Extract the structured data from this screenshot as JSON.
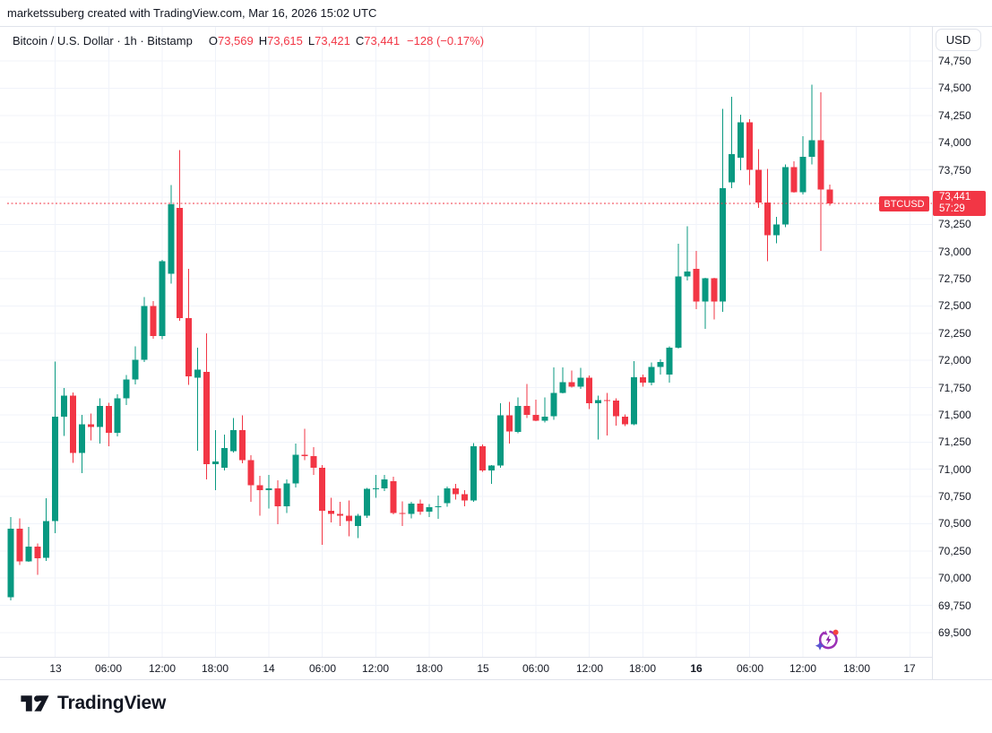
{
  "header": {
    "attribution": "marketssuberg created with TradingView.com, Mar 16, 2026 15:02 UTC"
  },
  "legend": {
    "title": "Bitcoin / U.S. Dollar · 1h · Bitstamp",
    "items": [
      {
        "k": "O",
        "v": "73,569"
      },
      {
        "k": "H",
        "v": "73,615"
      },
      {
        "k": "L",
        "v": "73,421"
      },
      {
        "k": "C",
        "v": "73,441"
      }
    ],
    "change": "−128 (−0.17%)"
  },
  "price_axis": {
    "currency_button": "USD",
    "tick_labels": [
      "74,750",
      "74,500",
      "74,250",
      "74,000",
      "73,750",
      "73,500",
      "73,250",
      "73,000",
      "72,750",
      "72,500",
      "72,250",
      "72,000",
      "71,750",
      "71,500",
      "71,250",
      "71,000",
      "70,750",
      "70,500",
      "70,250",
      "70,000",
      "69,750",
      "69,500"
    ],
    "current_price_label": {
      "price": "73,441",
      "countdown": "57:29"
    }
  },
  "price_line": {
    "symbol_label": "BTCUSD",
    "value": 73441
  },
  "footer": {
    "brand": "TradingView"
  },
  "colors": {
    "up": "#089981",
    "down": "#f23645",
    "grid": "#f0f3fa",
    "text": "#131722",
    "border": "#e0e3eb",
    "label_bg": "#f23645",
    "white": "#ffffff"
  },
  "chart_data": {
    "type": "candlestick",
    "title": "Bitcoin / U.S. Dollar",
    "symbol": "BTCUSD",
    "exchange": "Bitstamp",
    "interval": "1h",
    "quote_currency": "USD",
    "current": {
      "open": 73569,
      "high": 73615,
      "low": 73421,
      "close": 73441,
      "change": -128,
      "change_pct": -0.17,
      "bar_close_countdown": "57:29"
    },
    "y_axis": {
      "min": 69350,
      "max": 74940,
      "tick_step": 250,
      "ticks": [
        74750,
        74500,
        74250,
        74000,
        73750,
        73500,
        73250,
        73000,
        72750,
        72500,
        72250,
        72000,
        71750,
        71500,
        71250,
        71000,
        70750,
        70500,
        70250,
        70000,
        69750,
        69500
      ]
    },
    "x_axis": {
      "start": "Mar 12 19:00 UTC",
      "step_hours": 1,
      "ticks": [
        {
          "label": "13",
          "idx": 5,
          "bold": false
        },
        {
          "label": "06:00",
          "idx": 11,
          "bold": false
        },
        {
          "label": "12:00",
          "idx": 17,
          "bold": false
        },
        {
          "label": "18:00",
          "idx": 23,
          "bold": false
        },
        {
          "label": "14",
          "idx": 29,
          "bold": false
        },
        {
          "label": "06:00",
          "idx": 35,
          "bold": false
        },
        {
          "label": "12:00",
          "idx": 41,
          "bold": false
        },
        {
          "label": "18:00",
          "idx": 47,
          "bold": false
        },
        {
          "label": "15",
          "idx": 53,
          "bold": false
        },
        {
          "label": "06:00",
          "idx": 59,
          "bold": false
        },
        {
          "label": "12:00",
          "idx": 65,
          "bold": false
        },
        {
          "label": "18:00",
          "idx": 71,
          "bold": false
        },
        {
          "label": "16",
          "idx": 77,
          "bold": true
        },
        {
          "label": "06:00",
          "idx": 83,
          "bold": false
        },
        {
          "label": "12:00",
          "idx": 89,
          "bold": false
        },
        {
          "label": "18:00",
          "idx": 95,
          "bold": false
        },
        {
          "label": "17",
          "idx": 101,
          "bold": false
        }
      ]
    },
    "candles_ohlc": [
      [
        69825,
        70560,
        69795,
        70455
      ],
      [
        70455,
        70550,
        70120,
        70155
      ],
      [
        70155,
        70470,
        70150,
        70290
      ],
      [
        70290,
        70320,
        70030,
        70185
      ],
      [
        70185,
        70735,
        70160,
        70525
      ],
      [
        70525,
        71990,
        70415,
        71485
      ],
      [
        71485,
        71745,
        71305,
        71675
      ],
      [
        71675,
        71705,
        71060,
        71150
      ],
      [
        71150,
        71500,
        70965,
        71415
      ],
      [
        71415,
        71510,
        71265,
        71390
      ],
      [
        71390,
        71650,
        71235,
        71580
      ],
      [
        71580,
        71610,
        71210,
        71335
      ],
      [
        71335,
        71690,
        71300,
        71650
      ],
      [
        71650,
        71865,
        71590,
        71825
      ],
      [
        71825,
        72130,
        71780,
        72005
      ],
      [
        72005,
        72580,
        71985,
        72500
      ],
      [
        72500,
        72545,
        72200,
        72225
      ],
      [
        72225,
        72925,
        72195,
        72910
      ],
      [
        72795,
        73610,
        72705,
        73435
      ],
      [
        73400,
        73930,
        72365,
        72390
      ],
      [
        72390,
        72840,
        71775,
        71855
      ],
      [
        71840,
        72115,
        71170,
        71915
      ],
      [
        71895,
        72250,
        70905,
        71045
      ],
      [
        71045,
        71360,
        70810,
        71070
      ],
      [
        71015,
        71320,
        70990,
        71195
      ],
      [
        71165,
        71470,
        71155,
        71360
      ],
      [
        71360,
        71495,
        71055,
        71085
      ],
      [
        71085,
        71130,
        70700,
        70855
      ],
      [
        70855,
        70940,
        70575,
        70810
      ],
      [
        70810,
        70950,
        70640,
        70825
      ],
      [
        70825,
        70900,
        70495,
        70660
      ],
      [
        70660,
        70905,
        70600,
        70870
      ],
      [
        70870,
        71235,
        70835,
        71135
      ],
      [
        71135,
        71370,
        71085,
        71120
      ],
      [
        71120,
        71205,
        70950,
        71015
      ],
      [
        71015,
        71040,
        70305,
        70620
      ],
      [
        70620,
        70740,
        70510,
        70590
      ],
      [
        70590,
        70700,
        70480,
        70575
      ],
      [
        70575,
        70715,
        70385,
        70525
      ],
      [
        70480,
        70590,
        70370,
        70575
      ],
      [
        70575,
        70830,
        70555,
        70820
      ],
      [
        70820,
        70950,
        70740,
        70825
      ],
      [
        70825,
        70950,
        70800,
        70905
      ],
      [
        70890,
        70930,
        70585,
        70600
      ],
      [
        70600,
        70705,
        70480,
        70590
      ],
      [
        70590,
        70700,
        70550,
        70685
      ],
      [
        70685,
        70720,
        70580,
        70610
      ],
      [
        70610,
        70680,
        70560,
        70650
      ],
      [
        70650,
        70760,
        70545,
        70660
      ],
      [
        70690,
        70840,
        70655,
        70825
      ],
      [
        70825,
        70865,
        70720,
        70770
      ],
      [
        70770,
        70810,
        70660,
        70715
      ],
      [
        70715,
        71240,
        70700,
        71210
      ],
      [
        71210,
        71230,
        70975,
        70990
      ],
      [
        70990,
        71040,
        70865,
        71035
      ],
      [
        71035,
        71605,
        71015,
        71495
      ],
      [
        71495,
        71620,
        71235,
        71345
      ],
      [
        71345,
        71660,
        71330,
        71580
      ],
      [
        71580,
        71785,
        71470,
        71500
      ],
      [
        71500,
        71640,
        71440,
        71445
      ],
      [
        71445,
        71660,
        71430,
        71485
      ],
      [
        71485,
        71935,
        71455,
        71700
      ],
      [
        71700,
        71935,
        71695,
        71800
      ],
      [
        71800,
        71905,
        71750,
        71760
      ],
      [
        71760,
        71930,
        71740,
        71840
      ],
      [
        71840,
        71860,
        71555,
        71605
      ],
      [
        71605,
        71675,
        71275,
        71635
      ],
      [
        71635,
        71700,
        71310,
        71630
      ],
      [
        71630,
        71650,
        71400,
        71485
      ],
      [
        71485,
        71505,
        71395,
        71415
      ],
      [
        71415,
        71995,
        71405,
        71845
      ],
      [
        71845,
        71870,
        71760,
        71795
      ],
      [
        71795,
        71980,
        71770,
        71940
      ],
      [
        71940,
        72010,
        71870,
        71985
      ],
      [
        71870,
        72130,
        71795,
        72115
      ],
      [
        72115,
        73070,
        72110,
        72770
      ],
      [
        72770,
        73230,
        72735,
        72815
      ],
      [
        72840,
        73005,
        72470,
        72540
      ],
      [
        72540,
        72760,
        72290,
        72755
      ],
      [
        72755,
        72760,
        72375,
        72540
      ],
      [
        72540,
        74310,
        72445,
        73580
      ],
      [
        73634,
        74420,
        73580,
        73895
      ],
      [
        73860,
        74255,
        73745,
        74185
      ],
      [
        74185,
        74215,
        73610,
        73750
      ],
      [
        73750,
        73940,
        73400,
        73450
      ],
      [
        73450,
        73760,
        72910,
        73150
      ],
      [
        73150,
        73320,
        73075,
        73250
      ],
      [
        73250,
        73800,
        73225,
        73775
      ],
      [
        73775,
        73830,
        73540,
        73545
      ],
      [
        73545,
        74060,
        73525,
        73870
      ],
      [
        73870,
        74530,
        73800,
        74020
      ],
      [
        74020,
        74460,
        73005,
        73570
      ],
      [
        73569,
        73615,
        73421,
        73441
      ]
    ],
    "legend_note": "grid on; price scale right; last price line dotted red at 73,441"
  }
}
